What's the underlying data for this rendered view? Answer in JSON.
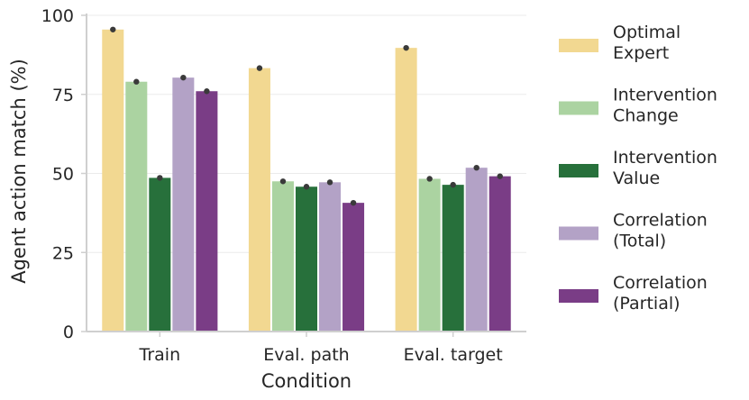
{
  "chart_data": {
    "type": "bar",
    "title": "",
    "xlabel": "Condition",
    "ylabel": "Agent action match (%)",
    "ylim": [
      0,
      100
    ],
    "yticks": [
      0,
      25,
      50,
      75,
      100
    ],
    "grid": "horizontal",
    "legend_position": "right",
    "categories": [
      "Train",
      "Eval. path",
      "Eval. target"
    ],
    "series": [
      {
        "name": "Optimal\nExpert",
        "color": "#f2d891",
        "values": [
          95.5,
          83.3,
          89.7
        ],
        "err": [
          0.5,
          0.6,
          0.5
        ]
      },
      {
        "name": "Intervention\nChange",
        "color": "#abd3a1",
        "values": [
          79.0,
          47.5,
          48.3
        ],
        "err": [
          0.6,
          0.8,
          0.6
        ]
      },
      {
        "name": "Intervention\nValue",
        "color": "#27703b",
        "values": [
          48.6,
          45.8,
          46.4
        ],
        "err": [
          0.6,
          0.7,
          0.6
        ]
      },
      {
        "name": "Correlation\n(Total)",
        "color": "#b3a2c6",
        "values": [
          80.3,
          47.2,
          51.8
        ],
        "err": [
          0.6,
          0.7,
          0.7
        ]
      },
      {
        "name": "Correlation\n(Partial)",
        "color": "#7a3d86",
        "values": [
          76.0,
          40.7,
          49.1
        ],
        "err": [
          0.5,
          0.6,
          0.6
        ]
      }
    ]
  }
}
